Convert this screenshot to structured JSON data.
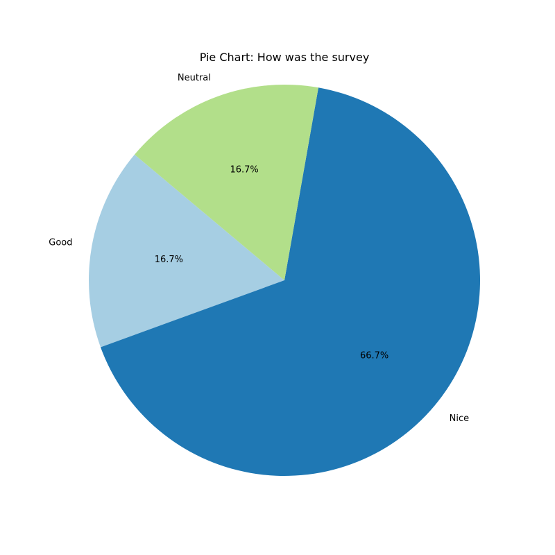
{
  "chart_data": {
    "type": "pie",
    "title": "Pie Chart: How was the survey",
    "start_angle_deg": 140,
    "direction": "counterclockwise",
    "slices": [
      {
        "label": "Good",
        "value": 1,
        "percent_label": "16.7%",
        "color": "#a6cee3"
      },
      {
        "label": "Nice",
        "value": 4,
        "percent_label": "66.7%",
        "color": "#1f78b4"
      },
      {
        "label": "Neutral",
        "value": 1,
        "percent_label": "16.7%",
        "color": "#b2df8a"
      }
    ]
  }
}
